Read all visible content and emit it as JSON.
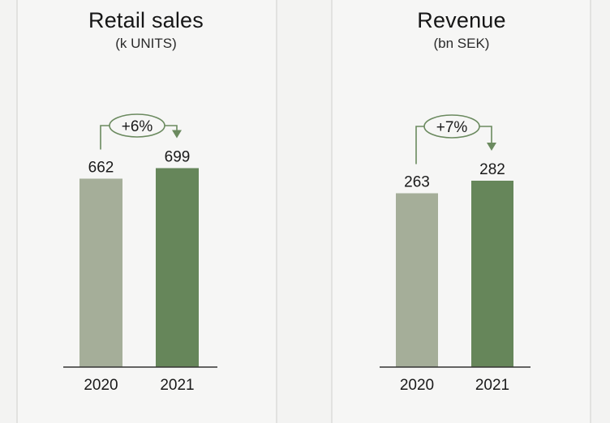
{
  "colors": {
    "bar_2020": "#a5ae99",
    "bar_2021": "#66865a",
    "annotation": "#6b8a5f",
    "axis": "#333333",
    "background": "#f3f3f2"
  },
  "chart_data": [
    {
      "type": "bar",
      "title": "Retail sales",
      "subtitle": "(k UNITS)",
      "categories": [
        "2020",
        "2021"
      ],
      "values": [
        662,
        699
      ],
      "value_labels": [
        "662",
        "699"
      ],
      "change_label": "+6%",
      "ylim": [
        0,
        800
      ],
      "grid": false
    },
    {
      "type": "bar",
      "title": "Revenue",
      "subtitle": "(bn SEK)",
      "categories": [
        "2020",
        "2021"
      ],
      "values": [
        263,
        282
      ],
      "value_labels": [
        "263",
        "282"
      ],
      "change_label": "+7%",
      "ylim": [
        0,
        320
      ],
      "grid": false
    }
  ]
}
